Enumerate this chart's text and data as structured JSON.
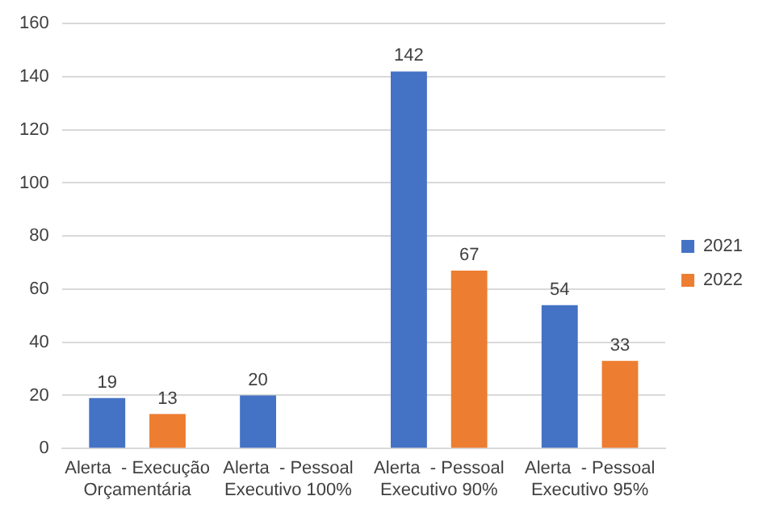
{
  "chart_data": {
    "type": "bar",
    "categories": [
      "Alerta  - Execução\nOrçamentária",
      "Alerta  - Pessoal\nExecutivo 100%",
      "Alerta  - Pessoal\nExecutivo 90%",
      "Alerta  - Pessoal\nExecutivo 95%"
    ],
    "series": [
      {
        "name": "2021",
        "color": "#4472c4",
        "values": [
          19,
          20,
          142,
          54
        ]
      },
      {
        "name": "2022",
        "color": "#ed7d31",
        "values": [
          13,
          null,
          67,
          33
        ]
      }
    ],
    "ylim": [
      0,
      160
    ],
    "yticks": [
      0,
      20,
      40,
      60,
      80,
      100,
      120,
      140,
      160
    ],
    "grid": "y",
    "legend": "right",
    "data_labels": true
  }
}
